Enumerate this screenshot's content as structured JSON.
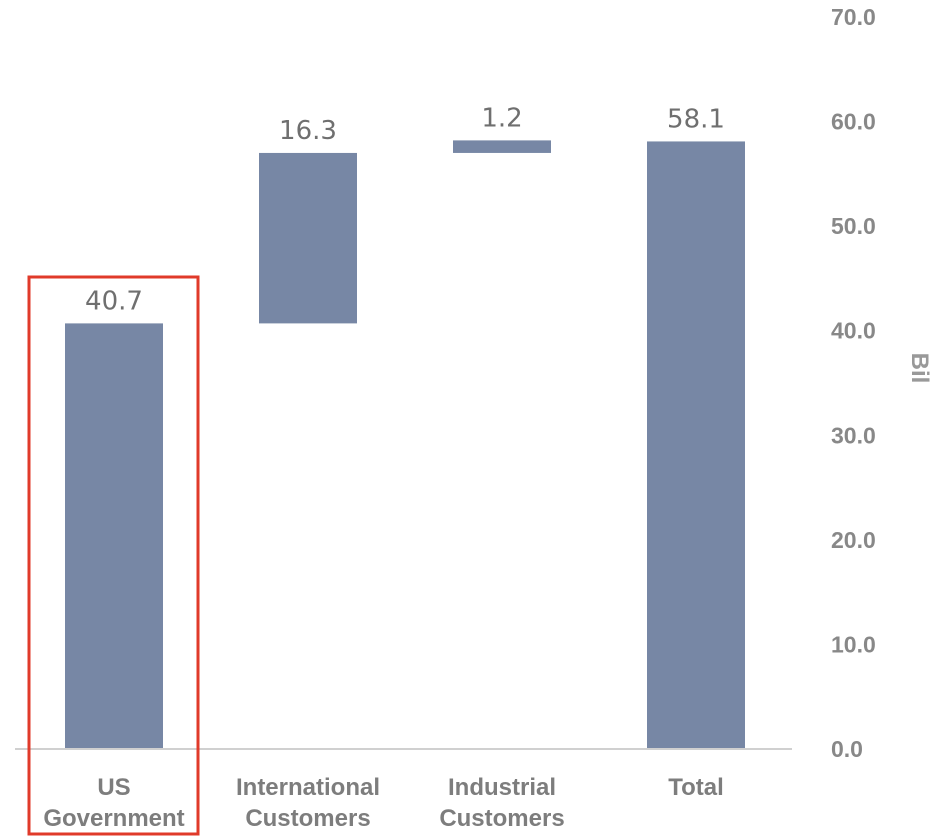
{
  "chart_data": {
    "type": "bar",
    "subtype": "waterfall",
    "categories": [
      [
        "US",
        "Government"
      ],
      [
        "International",
        "Customers"
      ],
      [
        "Industrial",
        "Customers"
      ],
      [
        "Total"
      ]
    ],
    "values": [
      40.7,
      16.3,
      1.2,
      58.1
    ],
    "data_labels": [
      "40.7",
      "16.3",
      "1.2",
      "58.1"
    ],
    "ylabel": "Bil",
    "ylim": [
      0,
      70
    ],
    "yticks": [
      "0.0",
      "10.0",
      "20.0",
      "30.0",
      "40.0",
      "50.0",
      "60.0",
      "70.0"
    ],
    "y_axis_side": "right",
    "grid": false,
    "bar_color": "#7787a5",
    "highlight": {
      "category_index": 0,
      "color": "#e03a2a"
    }
  }
}
